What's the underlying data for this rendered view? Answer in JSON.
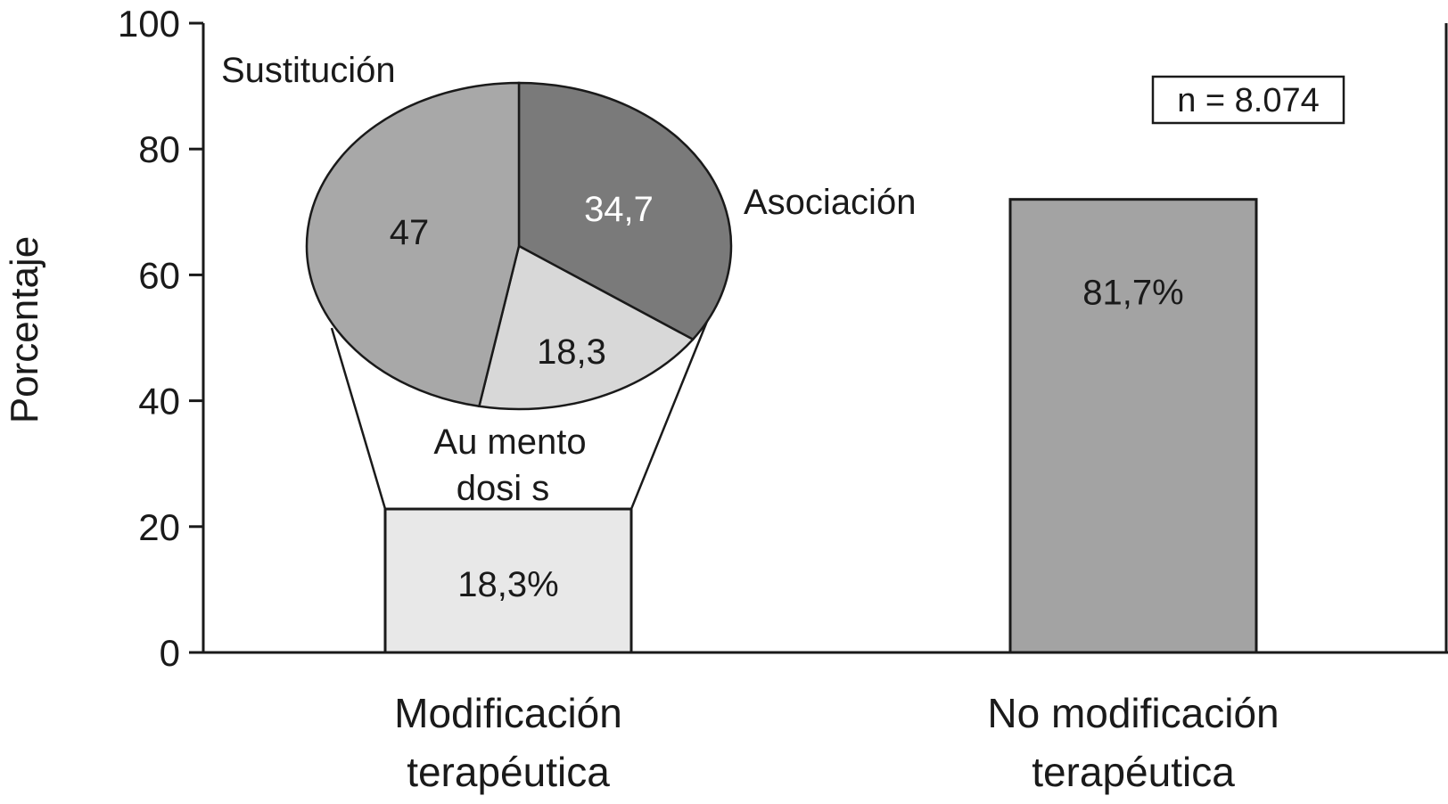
{
  "chart_data": {
    "type": "bar",
    "ylabel": "Porcentaje",
    "ylim": [
      0,
      100
    ],
    "yticks": [
      0,
      20,
      40,
      60,
      80,
      100
    ],
    "categories": [
      [
        "Modificación",
        "terapéutica"
      ],
      [
        "No modificación",
        "terapéutica"
      ]
    ],
    "values": [
      18.3,
      81.7
    ],
    "value_labels": [
      "18,3%",
      "81,7%"
    ],
    "bar_colors": [
      "#e8e8e8",
      "#a3a3a3"
    ],
    "annotation": "n = 8.074",
    "breakdown": {
      "type": "pie",
      "of_category": 0,
      "slices": [
        {
          "label": "Asociación",
          "value": 34.7,
          "value_label": "34,7",
          "color": "#7a7a7a",
          "value_text_color": "#ffffff"
        },
        {
          "label": "Aumento dosis",
          "label_lines": [
            "Au mento",
            "dosi s"
          ],
          "value": 18.3,
          "value_label": "18,3",
          "color": "#d8d8d8",
          "value_text_color": "#1a1a1a"
        },
        {
          "label": "Sustitución",
          "value": 47,
          "value_label": "47",
          "color": "#a8a8a8",
          "value_text_color": "#1a1a1a"
        }
      ]
    }
  }
}
